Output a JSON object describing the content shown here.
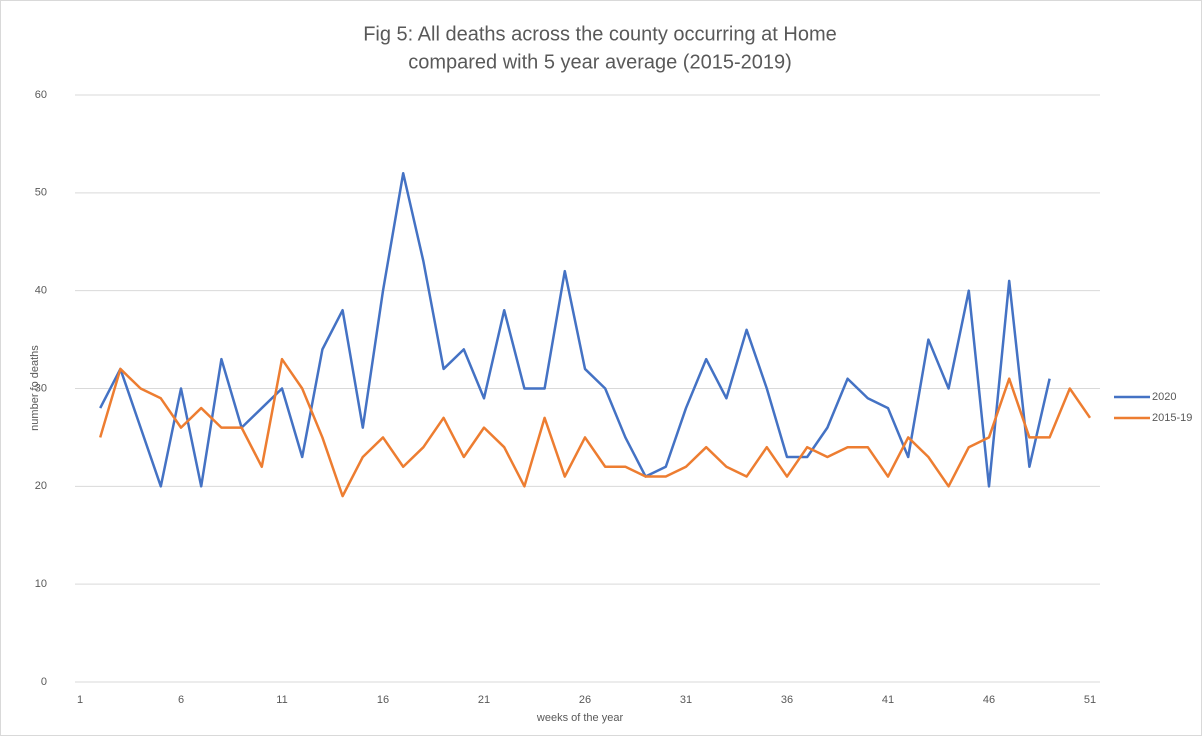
{
  "chart_data": {
    "type": "line",
    "title": [
      "Fig 5: All deaths across the county occurring at Home",
      "compared with 5 year average (2015-2019)"
    ],
    "x_label": "weeks of the year",
    "y_label": "number fo deaths",
    "x": [
      2,
      3,
      4,
      5,
      6,
      7,
      8,
      9,
      10,
      11,
      12,
      13,
      14,
      15,
      16,
      17,
      18,
      19,
      20,
      21,
      22,
      23,
      24,
      25,
      26,
      27,
      28,
      29,
      30,
      31,
      32,
      33,
      34,
      35,
      36,
      37,
      38,
      39,
      40,
      41,
      42,
      43,
      44,
      45,
      46,
      47,
      48,
      49,
      50,
      51
    ],
    "series": [
      {
        "name": "2020",
        "color": "#4472c4",
        "values": [
          28,
          32,
          26,
          20,
          30,
          20,
          33,
          26,
          28,
          30,
          23,
          34,
          38,
          26,
          40,
          52,
          43,
          32,
          34,
          29,
          38,
          30,
          30,
          42,
          32,
          30,
          25,
          21,
          22,
          28,
          33,
          29,
          36,
          30,
          23,
          23,
          26,
          31,
          29,
          28,
          23,
          35,
          30,
          40,
          20,
          41,
          22,
          31,
          null,
          null
        ]
      },
      {
        "name": "2015-19",
        "color": "#ed7d31",
        "values": [
          25,
          32,
          30,
          29,
          26,
          28,
          26,
          26,
          22,
          33,
          30,
          25,
          19,
          23,
          25,
          22,
          24,
          27,
          23,
          26,
          24,
          20,
          27,
          21,
          25,
          22,
          22,
          21,
          21,
          22,
          24,
          22,
          21,
          24,
          21,
          24,
          23,
          24,
          24,
          21,
          25,
          23,
          20,
          24,
          25,
          31,
          25,
          25,
          30,
          27
        ]
      }
    ],
    "xlim": [
      1,
      51
    ],
    "xticks": [
      1,
      6,
      11,
      16,
      21,
      26,
      31,
      36,
      41,
      46,
      51
    ],
    "ylim": [
      0,
      60
    ],
    "yticks": [
      0,
      10,
      20,
      30,
      40,
      50,
      60
    ],
    "grid": true,
    "legend": "right"
  }
}
